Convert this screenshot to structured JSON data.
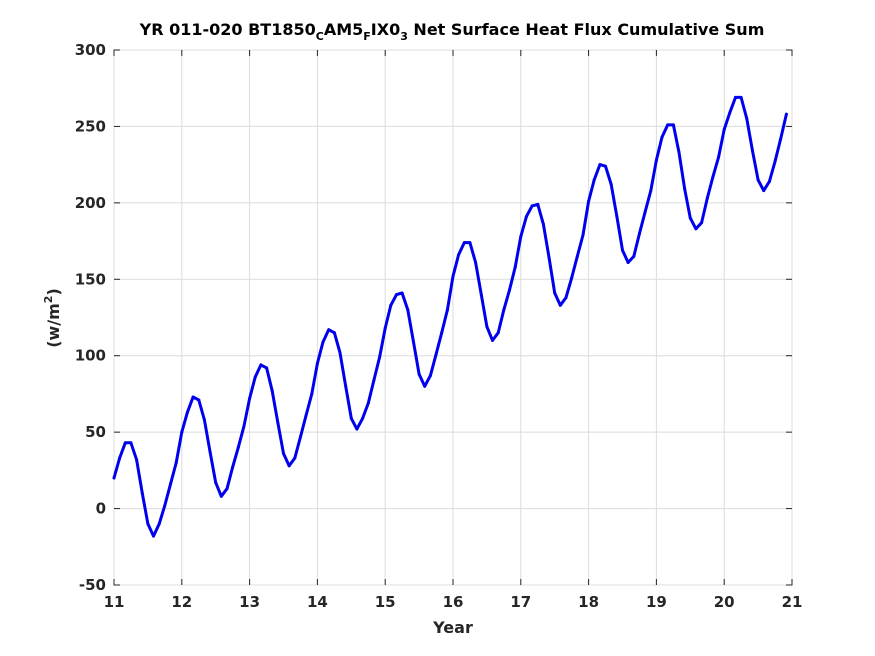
{
  "chart_data": {
    "type": "line",
    "title": {
      "parts": [
        {
          "text": "YR 011-020 BT1850",
          "role": "normal"
        },
        {
          "text": "C",
          "role": "sub"
        },
        {
          "text": "AM5",
          "role": "normal"
        },
        {
          "text": "F",
          "role": "sub"
        },
        {
          "text": "IX0",
          "role": "normal"
        },
        {
          "text": "3",
          "role": "sub"
        },
        {
          "text": " Net Surface Heat Flux  Cumulative Sum",
          "role": "normal"
        }
      ]
    },
    "xlabel": "Year",
    "ylabel": {
      "base": "(w/m",
      "sup": "2",
      "end": ")"
    },
    "xlim": [
      11,
      21
    ],
    "ylim": [
      -50,
      300
    ],
    "xticks": [
      11,
      12,
      13,
      14,
      15,
      16,
      17,
      18,
      19,
      20,
      21
    ],
    "yticks": [
      -50,
      0,
      50,
      100,
      150,
      200,
      250,
      300
    ],
    "grid": true,
    "colors": {
      "series": "#0000ee",
      "axis": "#262626",
      "grid": "#dcdcdc"
    },
    "series": [
      {
        "x": [
          11.0,
          11.083,
          11.167,
          11.25,
          11.333,
          11.417,
          11.5,
          11.583,
          11.667,
          11.75,
          11.833,
          11.917,
          12.0,
          12.083,
          12.167,
          12.25,
          12.333,
          12.417,
          12.5,
          12.583,
          12.667,
          12.75,
          12.833,
          12.917,
          13.0,
          13.083,
          13.167,
          13.25,
          13.333,
          13.417,
          13.5,
          13.583,
          13.667,
          13.75,
          13.833,
          13.917,
          14.0,
          14.083,
          14.167,
          14.25,
          14.333,
          14.417,
          14.5,
          14.583,
          14.667,
          14.75,
          14.833,
          14.917,
          15.0,
          15.083,
          15.167,
          15.25,
          15.333,
          15.417,
          15.5,
          15.583,
          15.667,
          15.75,
          15.833,
          15.917,
          16.0,
          16.083,
          16.167,
          16.25,
          16.333,
          16.417,
          16.5,
          16.583,
          16.667,
          16.75,
          16.833,
          16.917,
          17.0,
          17.083,
          17.167,
          17.25,
          17.333,
          17.417,
          17.5,
          17.583,
          17.667,
          17.75,
          17.833,
          17.917,
          18.0,
          18.083,
          18.167,
          18.25,
          18.333,
          18.417,
          18.5,
          18.583,
          18.667,
          18.75,
          18.833,
          18.917,
          19.0,
          19.083,
          19.167,
          19.25,
          19.333,
          19.417,
          19.5,
          19.583,
          19.667,
          19.75,
          19.833,
          19.917,
          20.0,
          20.083,
          20.167,
          20.25,
          20.333,
          20.417,
          20.5,
          20.583,
          20.667,
          20.75,
          20.833,
          20.917
        ],
        "y": [
          20,
          33,
          43,
          43,
          32,
          10,
          -10,
          -18,
          -10,
          2,
          16,
          30,
          50,
          63,
          73,
          71,
          58,
          37,
          17,
          8,
          13,
          27,
          40,
          54,
          72,
          86,
          94,
          92,
          77,
          56,
          36,
          28,
          33,
          47,
          61,
          75,
          95,
          109,
          117,
          115,
          102,
          80,
          59,
          52,
          59,
          69,
          84,
          99,
          118,
          133,
          140,
          141,
          130,
          109,
          88,
          80,
          87,
          101,
          115,
          130,
          152,
          166,
          174,
          174,
          161,
          140,
          119,
          110,
          115,
          130,
          143,
          158,
          178,
          191,
          198,
          199,
          186,
          164,
          141,
          133,
          138,
          151,
          165,
          179,
          201,
          215,
          225,
          224,
          212,
          191,
          169,
          161,
          165,
          180,
          194,
          208,
          228,
          243,
          251,
          251,
          233,
          209,
          190,
          183,
          187,
          203,
          217,
          230,
          248,
          259,
          269,
          269,
          255,
          234,
          215,
          208,
          214,
          227,
          242,
          258
        ]
      }
    ]
  }
}
